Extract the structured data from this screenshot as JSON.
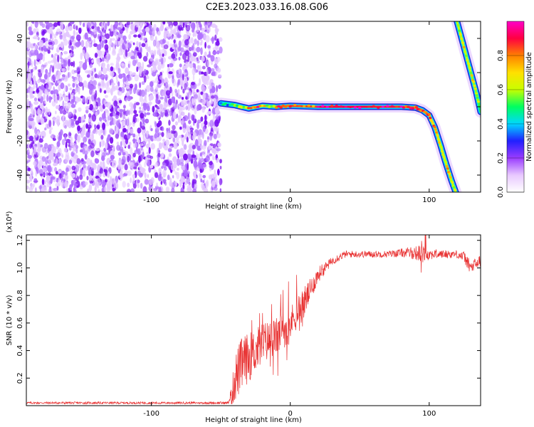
{
  "figure": {
    "title": "C2E3.2023.033.16.08.G06"
  },
  "colors": {
    "snr_line": "#e83030",
    "axis": "#000000"
  },
  "chart_data": [
    {
      "type": "heatmap",
      "xlabel": "Height of straight line (km)",
      "ylabel": "Frequency (Hz)",
      "xlim": [
        -190,
        137
      ],
      "ylim": [
        -50,
        50
      ],
      "xticks": [
        -100,
        0,
        100
      ],
      "yticks": [
        -40,
        -20,
        0,
        20,
        40
      ],
      "colorbar": {
        "label": "Normalized spectral amplitude",
        "range": [
          0,
          1
        ],
        "ticks": [
          0.0,
          0.2,
          0.4,
          0.6,
          0.8
        ],
        "tick_labels": [
          "0.0",
          "0.2",
          "0.4",
          "0.6",
          "0.8"
        ],
        "colormap": [
          "#ffffff",
          "#e8c8ff",
          "#9a3cff",
          "#2020ff",
          "#00d8ff",
          "#00ff60",
          "#c8ff00",
          "#ffe000",
          "#ff8000",
          "#ff0040",
          "#ff00c8"
        ]
      },
      "noise_region": {
        "x": [
          -190,
          -50
        ],
        "y": [
          -50,
          50
        ],
        "amplitude": 0.1
      },
      "signal_track": [
        {
          "x": -50,
          "y": 2,
          "amplitude": 0.35
        },
        {
          "x": -40,
          "y": 1,
          "amplitude": 0.5
        },
        {
          "x": -30,
          "y": -1,
          "amplitude": 0.8
        },
        {
          "x": -20,
          "y": 0.5,
          "amplitude": 0.6
        },
        {
          "x": -10,
          "y": 0,
          "amplitude": 0.85
        },
        {
          "x": 0,
          "y": 0.5,
          "amplitude": 0.8
        },
        {
          "x": 20,
          "y": 0,
          "amplitude": 0.9
        },
        {
          "x": 40,
          "y": 0,
          "amplitude": 0.9
        },
        {
          "x": 60,
          "y": 0,
          "amplitude": 0.9
        },
        {
          "x": 80,
          "y": 0,
          "amplitude": 0.85
        },
        {
          "x": 90,
          "y": -0.5,
          "amplitude": 0.8
        },
        {
          "x": 95,
          "y": -2,
          "amplitude": 0.8
        },
        {
          "x": 100,
          "y": -5,
          "amplitude": 0.75
        },
        {
          "x": 104,
          "y": -12,
          "amplitude": 0.7
        },
        {
          "x": 108,
          "y": -22,
          "amplitude": 0.65
        },
        {
          "x": 112,
          "y": -33,
          "amplitude": 0.65
        },
        {
          "x": 116,
          "y": -43,
          "amplitude": 0.6
        },
        {
          "x": 120,
          "y": -52,
          "amplitude": 0.6
        }
      ],
      "second_track": [
        {
          "x": 120,
          "y": 50,
          "amplitude": 0.6
        },
        {
          "x": 125,
          "y": 35,
          "amplitude": 0.6
        },
        {
          "x": 130,
          "y": 20,
          "amplitude": 0.6
        },
        {
          "x": 134,
          "y": 8,
          "amplitude": 0.55
        },
        {
          "x": 137,
          "y": -3,
          "amplitude": 0.5
        }
      ]
    },
    {
      "type": "line",
      "xlabel": "Height of straight line (km)",
      "ylabel": "SNR (10 * v/v)",
      "multiplier": "(x10⁴)",
      "xlim": [
        -190,
        137
      ],
      "ylim": [
        0,
        1.24
      ],
      "xticks": [
        -100,
        0,
        100
      ],
      "yticks": [
        0.2,
        0.4,
        0.6,
        0.8,
        1.0,
        1.2
      ],
      "ytick_labels": [
        "0.2",
        "0.4",
        "0.6",
        "0.8",
        "1.0",
        "1.2"
      ],
      "series": [
        {
          "x": [
            -190,
            -150,
            -100,
            -60,
            -45,
            -42,
            -40,
            -35,
            -30,
            -25,
            -20,
            -15,
            -10,
            -5,
            0,
            5,
            10,
            15,
            20,
            25,
            30,
            35,
            40,
            50,
            60,
            70,
            80,
            90,
            95,
            100,
            110,
            120,
            125,
            130,
            137
          ],
          "y": [
            0.02,
            0.02,
            0.02,
            0.02,
            0.02,
            0.08,
            0.2,
            0.3,
            0.35,
            0.4,
            0.45,
            0.48,
            0.5,
            0.55,
            0.6,
            0.68,
            0.75,
            0.85,
            0.95,
            1.0,
            1.05,
            1.08,
            1.1,
            1.1,
            1.1,
            1.1,
            1.11,
            1.11,
            1.1,
            1.1,
            1.1,
            1.1,
            1.08,
            1.0,
            1.05
          ],
          "noise": [
            0.008,
            0.008,
            0.008,
            0.008,
            0.01,
            0.08,
            0.18,
            0.2,
            0.18,
            0.16,
            0.16,
            0.14,
            0.14,
            0.14,
            0.12,
            0.12,
            0.12,
            0.08,
            0.06,
            0.04,
            0.03,
            0.03,
            0.025,
            0.025,
            0.025,
            0.025,
            0.03,
            0.05,
            0.07,
            0.04,
            0.03,
            0.03,
            0.04,
            0.05,
            0.05
          ]
        }
      ]
    }
  ]
}
